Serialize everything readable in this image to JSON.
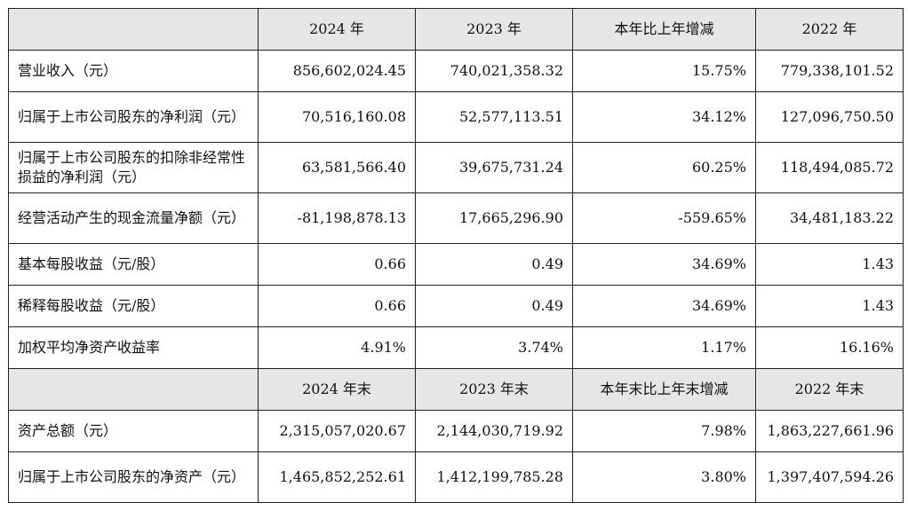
{
  "header1": [
    "",
    "2024 年",
    "2023 年",
    "本年比上年增减",
    "2022 年"
  ],
  "rows1": [
    {
      "label": "营业收入（元）",
      "values": [
        "856,602,024.45",
        "740,021,358.32",
        "15.75%",
        "779,338,101.52"
      ]
    },
    {
      "label": "归属于上市公司股东的净利润（元）",
      "values": [
        "70,516,160.08",
        "52,577,113.51",
        "34.12%",
        "127,096,750.50"
      ]
    },
    {
      "label": "归属于上市公司股东的扣除非经常性损益的净利润（元）",
      "values": [
        "63,581,566.40",
        "39,675,731.24",
        "60.25%",
        "118,494,085.72"
      ]
    },
    {
      "label": "经营活动产生的现金流量净额（元）",
      "values": [
        "-81,198,878.13",
        "17,665,296.90",
        "-559.65%",
        "34,481,183.22"
      ]
    },
    {
      "label": "基本每股收益（元/股）",
      "values": [
        "0.66",
        "0.49",
        "34.69%",
        "1.43"
      ]
    },
    {
      "label": "稀释每股收益（元/股）",
      "values": [
        "0.66",
        "0.49",
        "34.69%",
        "1.43"
      ]
    },
    {
      "label": "加权平均净资产收益率",
      "values": [
        "4.91%",
        "3.74%",
        "1.17%",
        "16.16%"
      ]
    }
  ],
  "header2": [
    "",
    "2024 年末",
    "2023 年末",
    "本年末比上年末增减",
    "2022 年末"
  ],
  "rows2": [
    {
      "label": "资产总额（元）",
      "values": [
        "2,315,057,020.67",
        "2,144,030,719.92",
        "7.98%",
        "1,863,227,661.96"
      ]
    },
    {
      "label": "归属于上市公司股东的净资产（元）",
      "values": [
        "1,465,852,252.61",
        "1,412,199,785.28",
        "3.80%",
        "1,397,407,594.26"
      ]
    }
  ]
}
